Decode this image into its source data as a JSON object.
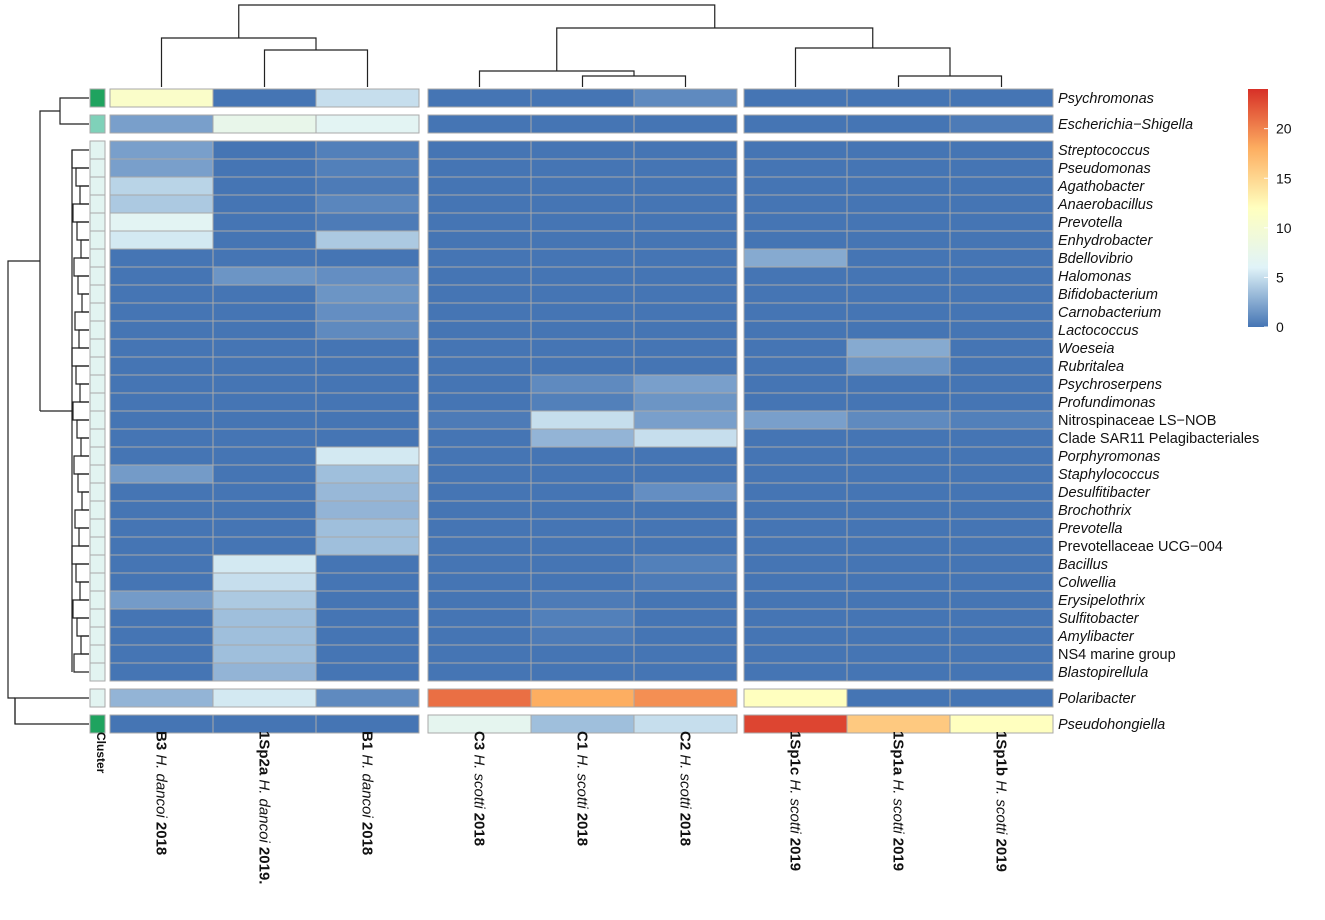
{
  "chart_data": {
    "type": "heatmap",
    "color_scale": {
      "min": 0,
      "max": 24,
      "ticks": [
        0,
        5,
        10,
        15,
        20
      ],
      "tick_labels": [
        "0",
        "5",
        "10",
        "15",
        "20"
      ],
      "colors": [
        "#4575b4",
        "#e0f3f8",
        "#ffffbf",
        "#fdae61",
        "#d73027"
      ]
    },
    "columns": [
      {
        "id": "B3",
        "species": "H. dancoi",
        "year": "2018"
      },
      {
        "id": "1Sp2a",
        "species": "H. dancoi",
        "year": "2019."
      },
      {
        "id": "B1",
        "species": "H. dancoi",
        "year": "2018"
      },
      {
        "id": "C3",
        "species": "H. scotti",
        "year": "2018"
      },
      {
        "id": "C1",
        "species": "H. scotti",
        "year": "2018"
      },
      {
        "id": "C2",
        "species": "H. scotti",
        "year": "2018"
      },
      {
        "id": "1Sp1c",
        "species": "H. scotti",
        "year": "2019"
      },
      {
        "id": "1Sp1a",
        "species": "H. scotti",
        "year": "2019"
      },
      {
        "id": "1Sp1b",
        "species": "H. scotti",
        "year": "2019"
      }
    ],
    "column_groups": [
      3,
      3,
      3
    ],
    "cluster_label": "Cluster",
    "cluster_colors": {
      "1": "#1fa35f",
      "2": "#7fd1b9",
      "3": "#e2f4f1"
    },
    "rows": [
      {
        "name": "Psychromonas",
        "italic": true,
        "cluster": 1,
        "group": 0,
        "values": [
          11,
          0,
          5,
          0,
          0,
          1,
          0,
          0,
          0
        ]
      },
      {
        "name": "Escherichia−Shigella",
        "italic": true,
        "cluster": 2,
        "group": 1,
        "values": [
          2,
          7.5,
          6.5,
          0,
          0,
          0,
          0,
          0,
          0.3
        ]
      },
      {
        "name": "Streptococcus",
        "italic": true,
        "cluster": 3,
        "group": 2,
        "values": [
          2,
          0,
          0.5,
          0,
          0,
          0,
          0,
          0,
          0
        ]
      },
      {
        "name": "Pseudomonas",
        "italic": true,
        "cluster": 3,
        "group": 2,
        "values": [
          2,
          0,
          0.5,
          0,
          0,
          0,
          0,
          0,
          0
        ]
      },
      {
        "name": "Agathobacter",
        "italic": true,
        "cluster": 3,
        "group": 2,
        "values": [
          4.5,
          0,
          0.3,
          0,
          0,
          0,
          0,
          0,
          0
        ]
      },
      {
        "name": "Anaerobacillus",
        "italic": true,
        "cluster": 3,
        "group": 2,
        "values": [
          4,
          0,
          0.8,
          0,
          0,
          0,
          0,
          0,
          0
        ]
      },
      {
        "name": "Prevotella",
        "italic": true,
        "cluster": 3,
        "group": 2,
        "values": [
          6.5,
          0,
          0.3,
          0,
          0,
          0,
          0,
          0,
          0
        ]
      },
      {
        "name": "Enhydrobacter",
        "italic": true,
        "cluster": 3,
        "group": 2,
        "values": [
          5.5,
          0,
          4,
          0,
          0,
          0,
          0,
          0,
          0
        ]
      },
      {
        "name": "Bdellovibrio",
        "italic": true,
        "cluster": 3,
        "group": 2,
        "values": [
          0,
          0,
          0,
          0,
          0,
          0,
          2.5,
          0,
          0
        ]
      },
      {
        "name": "Halomonas",
        "italic": true,
        "cluster": 3,
        "group": 2,
        "values": [
          0,
          1.5,
          1.2,
          0,
          0,
          0,
          0,
          0,
          0
        ]
      },
      {
        "name": "Bifidobacterium",
        "italic": true,
        "cluster": 3,
        "group": 2,
        "values": [
          0,
          0,
          1.5,
          0,
          0,
          0,
          0,
          0,
          0
        ]
      },
      {
        "name": "Carnobacterium",
        "italic": true,
        "cluster": 3,
        "group": 2,
        "values": [
          0,
          0,
          1.2,
          0,
          0,
          0,
          0,
          0,
          0
        ]
      },
      {
        "name": "Lactococcus",
        "italic": true,
        "cluster": 3,
        "group": 2,
        "values": [
          0,
          0,
          1,
          0,
          0,
          0,
          0,
          0,
          0
        ]
      },
      {
        "name": "Woeseia",
        "italic": true,
        "cluster": 3,
        "group": 2,
        "values": [
          0,
          0,
          0,
          0,
          0,
          0,
          0,
          2.5,
          0
        ]
      },
      {
        "name": "Rubritalea",
        "italic": true,
        "cluster": 3,
        "group": 2,
        "values": [
          0,
          0,
          0,
          0,
          0,
          0,
          0,
          1.5,
          0
        ]
      },
      {
        "name": "Psychroserpens",
        "italic": true,
        "cluster": 3,
        "group": 2,
        "values": [
          0,
          0,
          0,
          0,
          1,
          2,
          0,
          0,
          0
        ]
      },
      {
        "name": "Profundimonas",
        "italic": true,
        "cluster": 3,
        "group": 2,
        "values": [
          0,
          0,
          0,
          0,
          0.5,
          1.5,
          0,
          0,
          0
        ]
      },
      {
        "name": "Nitrospinaceae LS−NOB",
        "italic": false,
        "cluster": 3,
        "group": 2,
        "values": [
          0,
          0,
          0,
          0.3,
          5,
          2,
          2,
          1,
          0.5
        ]
      },
      {
        "name": "Clade SAR11 Pelagibacteriales",
        "italic": false,
        "cluster": 3,
        "group": 2,
        "values": [
          0,
          0,
          0,
          0,
          3,
          5,
          0,
          0,
          0
        ]
      },
      {
        "name": "Porphyromonas",
        "italic": true,
        "cluster": 3,
        "group": 2,
        "values": [
          0,
          0,
          5.5,
          0,
          0,
          0,
          0,
          0,
          0
        ]
      },
      {
        "name": "Staphylococcus",
        "italic": true,
        "cluster": 3,
        "group": 2,
        "values": [
          1.8,
          0,
          3.5,
          0,
          0,
          0,
          0,
          0,
          0
        ]
      },
      {
        "name": "Desulfitibacter",
        "italic": true,
        "cluster": 3,
        "group": 2,
        "values": [
          0,
          0,
          3.2,
          0,
          0,
          1.2,
          0,
          0,
          0
        ]
      },
      {
        "name": "Brochothrix",
        "italic": true,
        "cluster": 3,
        "group": 2,
        "values": [
          0,
          0,
          3,
          0,
          0,
          0,
          0,
          0,
          0
        ]
      },
      {
        "name": "Prevotella",
        "italic": true,
        "cluster": 3,
        "group": 2,
        "values": [
          0,
          0,
          3.5,
          0,
          0,
          0,
          0,
          0,
          0
        ]
      },
      {
        "name": "Prevotellaceae UCG−004",
        "italic": false,
        "cluster": 3,
        "group": 2,
        "values": [
          0,
          0,
          3.5,
          0,
          0,
          0,
          0,
          0,
          0
        ]
      },
      {
        "name": "Bacillus",
        "italic": true,
        "cluster": 3,
        "group": 2,
        "values": [
          0,
          5.5,
          0,
          0,
          0,
          0.5,
          0,
          0,
          0
        ]
      },
      {
        "name": "Colwellia",
        "italic": true,
        "cluster": 3,
        "group": 2,
        "values": [
          0,
          5,
          0,
          0,
          0,
          0.3,
          0,
          0,
          0
        ]
      },
      {
        "name": "Erysipelothrix",
        "italic": true,
        "cluster": 3,
        "group": 2,
        "values": [
          1.8,
          4,
          0,
          0,
          0.3,
          0,
          0,
          0,
          0
        ]
      },
      {
        "name": "Sulfitobacter",
        "italic": true,
        "cluster": 3,
        "group": 2,
        "values": [
          0,
          3.5,
          0,
          0,
          0.5,
          0,
          0,
          0,
          0
        ]
      },
      {
        "name": "Amylibacter",
        "italic": true,
        "cluster": 3,
        "group": 2,
        "values": [
          0,
          3.5,
          0,
          0,
          0.3,
          0,
          0,
          0,
          0
        ]
      },
      {
        "name": "NS4 marine group",
        "italic": false,
        "cluster": 3,
        "group": 2,
        "values": [
          0,
          3.5,
          0,
          0,
          0,
          0,
          0,
          0,
          0
        ]
      },
      {
        "name": "Blastopirellula",
        "italic": true,
        "cluster": 3,
        "group": 2,
        "values": [
          0,
          3,
          0,
          0,
          0,
          0,
          0,
          0,
          0
        ]
      },
      {
        "name": "Polaribacter",
        "italic": true,
        "cluster": 3,
        "group": 3,
        "values": [
          3,
          5.5,
          1,
          21,
          18,
          19.5,
          12,
          0,
          0
        ]
      },
      {
        "name": "Pseudohongiella",
        "italic": true,
        "cluster": 1,
        "group": 4,
        "values": [
          0,
          0,
          0,
          7,
          3.5,
          5,
          23,
          16,
          12
        ]
      }
    ]
  }
}
